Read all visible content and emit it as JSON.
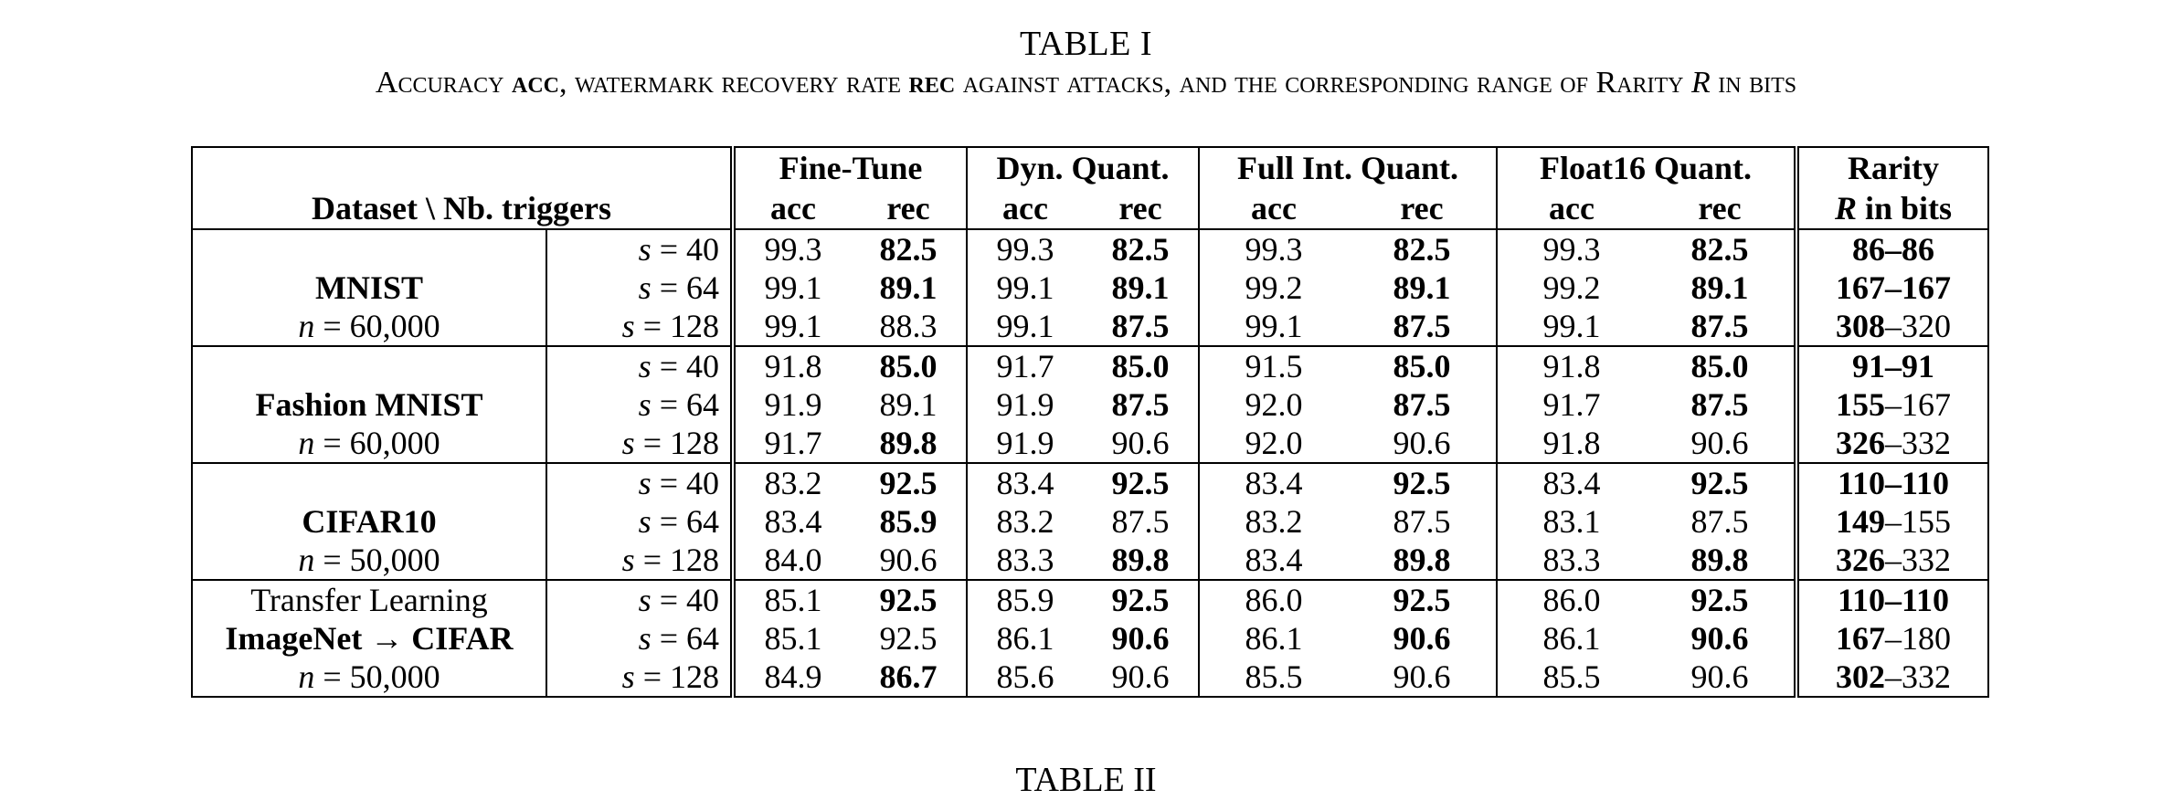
{
  "caption": {
    "label": "TABLE I",
    "text_parts": [
      "Accuracy ",
      "acc",
      ", watermark recovery rate ",
      "rec",
      " against attacks, and the corresponding range of Rarity ",
      "R",
      " in bits"
    ]
  },
  "next_caption": "TABLE II",
  "table": {
    "header": {
      "corner": "Dataset \\ Nb. triggers",
      "groups": [
        "Fine-Tune",
        "Dyn. Quant.",
        "Full Int. Quant.",
        "Float16 Quant."
      ],
      "sub": [
        "acc",
        "rec"
      ],
      "rarity_line1": "Rarity",
      "rarity_line2_var": "R",
      "rarity_line2_rest": " in bits"
    },
    "datasets": [
      {
        "name_lines": [
          "",
          "MNIST",
          "n = 60,000"
        ],
        "name_bold": [
          false,
          true,
          false
        ],
        "rows": [
          {
            "s": "s = 40",
            "vals": [
              "99.3",
              "82.5",
              "99.3",
              "82.5",
              "99.3",
              "82.5",
              "99.3",
              "82.5"
            ],
            "bold": [
              false,
              true,
              false,
              true,
              false,
              true,
              false,
              true
            ],
            "r1": "86",
            "r2": "86",
            "r1b": true,
            "r2b": true
          },
          {
            "s": "s = 64",
            "vals": [
              "99.1",
              "89.1",
              "99.1",
              "89.1",
              "99.2",
              "89.1",
              "99.2",
              "89.1"
            ],
            "bold": [
              false,
              true,
              false,
              true,
              false,
              true,
              false,
              true
            ],
            "r1": "167",
            "r2": "167",
            "r1b": true,
            "r2b": true
          },
          {
            "s": "s = 128",
            "vals": [
              "99.1",
              "88.3",
              "99.1",
              "87.5",
              "99.1",
              "87.5",
              "99.1",
              "87.5"
            ],
            "bold": [
              false,
              false,
              false,
              true,
              false,
              true,
              false,
              true
            ],
            "r1": "308",
            "r2": "320",
            "r1b": true,
            "r2b": false
          }
        ]
      },
      {
        "name_lines": [
          "",
          "Fashion MNIST",
          "n = 60,000"
        ],
        "name_bold": [
          false,
          true,
          false
        ],
        "rows": [
          {
            "s": "s = 40",
            "vals": [
              "91.8",
              "85.0",
              "91.7",
              "85.0",
              "91.5",
              "85.0",
              "91.8",
              "85.0"
            ],
            "bold": [
              false,
              true,
              false,
              true,
              false,
              true,
              false,
              true
            ],
            "r1": "91",
            "r2": "91",
            "r1b": true,
            "r2b": true
          },
          {
            "s": "s = 64",
            "vals": [
              "91.9",
              "89.1",
              "91.9",
              "87.5",
              "92.0",
              "87.5",
              "91.7",
              "87.5"
            ],
            "bold": [
              false,
              false,
              false,
              true,
              false,
              true,
              false,
              true
            ],
            "r1": "155",
            "r2": "167",
            "r1b": true,
            "r2b": false
          },
          {
            "s": "s = 128",
            "vals": [
              "91.7",
              "89.8",
              "91.9",
              "90.6",
              "92.0",
              "90.6",
              "91.8",
              "90.6"
            ],
            "bold": [
              false,
              true,
              false,
              false,
              false,
              false,
              false,
              false
            ],
            "r1": "326",
            "r2": "332",
            "r1b": true,
            "r2b": false
          }
        ]
      },
      {
        "name_lines": [
          "",
          "CIFAR10",
          "n = 50,000"
        ],
        "name_bold": [
          false,
          true,
          false
        ],
        "rows": [
          {
            "s": "s = 40",
            "vals": [
              "83.2",
              "92.5",
              "83.4",
              "92.5",
              "83.4",
              "92.5",
              "83.4",
              "92.5"
            ],
            "bold": [
              false,
              true,
              false,
              true,
              false,
              true,
              false,
              true
            ],
            "r1": "110",
            "r2": "110",
            "r1b": true,
            "r2b": true
          },
          {
            "s": "s = 64",
            "vals": [
              "83.4",
              "85.9",
              "83.2",
              "87.5",
              "83.2",
              "87.5",
              "83.1",
              "87.5"
            ],
            "bold": [
              false,
              true,
              false,
              false,
              false,
              false,
              false,
              false
            ],
            "r1": "149",
            "r2": "155",
            "r1b": true,
            "r2b": false
          },
          {
            "s": "s = 128",
            "vals": [
              "84.0",
              "90.6",
              "83.3",
              "89.8",
              "83.4",
              "89.8",
              "83.3",
              "89.8"
            ],
            "bold": [
              false,
              false,
              false,
              true,
              false,
              true,
              false,
              true
            ],
            "r1": "326",
            "r2": "332",
            "r1b": true,
            "r2b": false
          }
        ]
      },
      {
        "name_lines": [
          "Transfer Learning",
          "ImageNet → CIFAR",
          "n = 50,000"
        ],
        "name_bold": [
          false,
          true,
          false
        ],
        "rows": [
          {
            "s": "s = 40",
            "vals": [
              "85.1",
              "92.5",
              "85.9",
              "92.5",
              "86.0",
              "92.5",
              "86.0",
              "92.5"
            ],
            "bold": [
              false,
              true,
              false,
              true,
              false,
              true,
              false,
              true
            ],
            "r1": "110",
            "r2": "110",
            "r1b": true,
            "r2b": true
          },
          {
            "s": "s = 64",
            "vals": [
              "85.1",
              "92.5",
              "86.1",
              "90.6",
              "86.1",
              "90.6",
              "86.1",
              "90.6"
            ],
            "bold": [
              false,
              false,
              false,
              true,
              false,
              true,
              false,
              true
            ],
            "r1": "167",
            "r2": "180",
            "r1b": true,
            "r2b": false
          },
          {
            "s": "s = 128",
            "vals": [
              "84.9",
              "86.7",
              "85.6",
              "90.6",
              "85.5",
              "90.6",
              "85.5",
              "90.6"
            ],
            "bold": [
              false,
              true,
              false,
              false,
              false,
              false,
              false,
              false
            ],
            "r1": "302",
            "r2": "332",
            "r1b": true,
            "r2b": false
          }
        ]
      }
    ]
  }
}
